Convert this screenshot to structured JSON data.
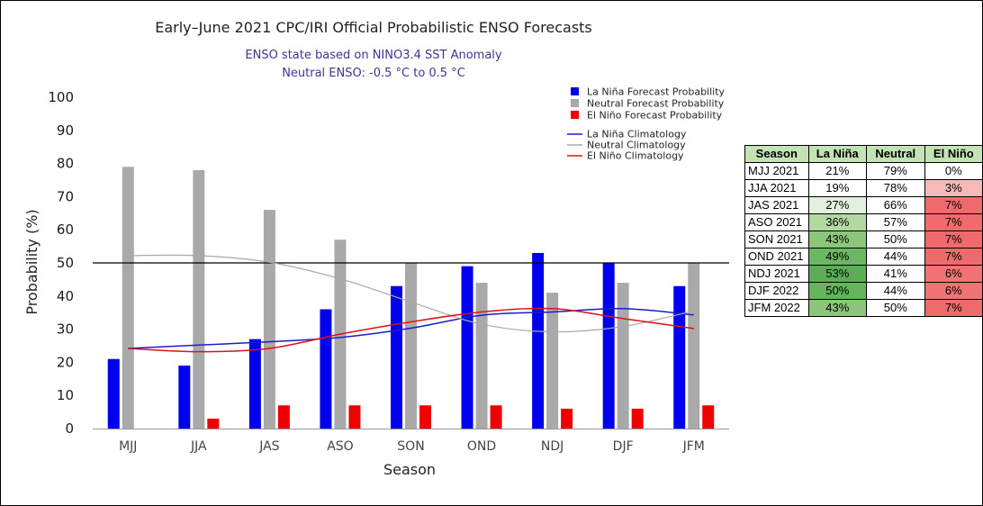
{
  "chart_data": {
    "type": "bar",
    "title": "Early–June 2021 CPC/IRI Official Probabilistic ENSO Forecasts",
    "subtitle": [
      "ENSO state based on NINO3.4 SST Anomaly",
      "Neutral ENSO: -0.5 °C to 0.5 °C"
    ],
    "xlabel": "Season",
    "ylabel": "Probability (%)",
    "ylim": [
      0,
      100
    ],
    "yticks": [
      0,
      10,
      20,
      30,
      40,
      50,
      60,
      70,
      80,
      90,
      100
    ],
    "reference_line": 50,
    "categories": [
      "MJJ",
      "JJA",
      "JAS",
      "ASO",
      "SON",
      "OND",
      "NDJ",
      "DJF",
      "JFM"
    ],
    "series": [
      {
        "name": "La Niña Forecast Probability",
        "color": "#0000ee",
        "values": [
          21,
          19,
          27,
          36,
          43,
          49,
          53,
          50,
          43
        ]
      },
      {
        "name": "Neutral Forecast Probability",
        "color": "#a9a9a9",
        "values": [
          79,
          78,
          66,
          57,
          50,
          44,
          41,
          44,
          50
        ]
      },
      {
        "name": "El Niño Forecast Probability",
        "color": "#ee0000",
        "values": [
          0,
          3,
          7,
          7,
          7,
          7,
          6,
          6,
          7
        ]
      }
    ],
    "climatology": [
      {
        "name": "La Niña Climatology",
        "color": "#1c1cc8",
        "values": [
          24.2,
          25.2,
          26.2,
          27.5,
          30.3,
          34.2,
          35.2,
          36.2,
          34.3
        ]
      },
      {
        "name": "Neutral Climatology",
        "color": "#a9a9a9",
        "values": [
          52.2,
          52.2,
          50.2,
          45.2,
          38.2,
          31.5,
          29.2,
          30.8,
          35.5
        ]
      },
      {
        "name": "El Niño Climatology",
        "color": "#dd1111",
        "values": [
          24.2,
          23.2,
          24.2,
          28.5,
          32.2,
          35.2,
          36.2,
          33.2,
          30.2
        ]
      }
    ],
    "legend_position": "top-right",
    "grid": false
  },
  "table": {
    "headers": [
      "Season",
      "La Niña",
      "Neutral",
      "El Niño"
    ],
    "rows": [
      {
        "season": "MJJ 2021",
        "la_nina": "21%",
        "neutral": "79%",
        "el_nino": "0%",
        "colors": [
          "#ffffff",
          "#ffffff",
          "#ffffff"
        ]
      },
      {
        "season": "JJA 2021",
        "la_nina": "19%",
        "neutral": "78%",
        "el_nino": "3%",
        "colors": [
          "#ffffff",
          "#ffffff",
          "#f6b9b9"
        ]
      },
      {
        "season": "JAS 2021",
        "la_nina": "27%",
        "neutral": "66%",
        "el_nino": "7%",
        "colors": [
          "#e3f1dc",
          "#ffffff",
          "#ef6a6a"
        ]
      },
      {
        "season": "ASO 2021",
        "la_nina": "36%",
        "neutral": "57%",
        "el_nino": "7%",
        "colors": [
          "#b2d9a2",
          "#ffffff",
          "#ef6a6a"
        ]
      },
      {
        "season": "SON 2021",
        "la_nina": "43%",
        "neutral": "50%",
        "el_nino": "7%",
        "colors": [
          "#8cc67a",
          "#ffffff",
          "#ef6a6a"
        ]
      },
      {
        "season": "OND 2021",
        "la_nina": "49%",
        "neutral": "44%",
        "el_nino": "7%",
        "colors": [
          "#6cb761",
          "#ffffff",
          "#ef6a6a"
        ]
      },
      {
        "season": "NDJ 2021",
        "la_nina": "53%",
        "neutral": "41%",
        "el_nino": "6%",
        "colors": [
          "#5cae56",
          "#ffffff",
          "#f07474"
        ]
      },
      {
        "season": "DJF 2022",
        "la_nina": "50%",
        "neutral": "44%",
        "el_nino": "6%",
        "colors": [
          "#66b45d",
          "#ffffff",
          "#f07474"
        ]
      },
      {
        "season": "JFM 2022",
        "la_nina": "43%",
        "neutral": "50%",
        "el_nino": "7%",
        "colors": [
          "#8cc67a",
          "#ffffff",
          "#ef6a6a"
        ]
      }
    ]
  }
}
